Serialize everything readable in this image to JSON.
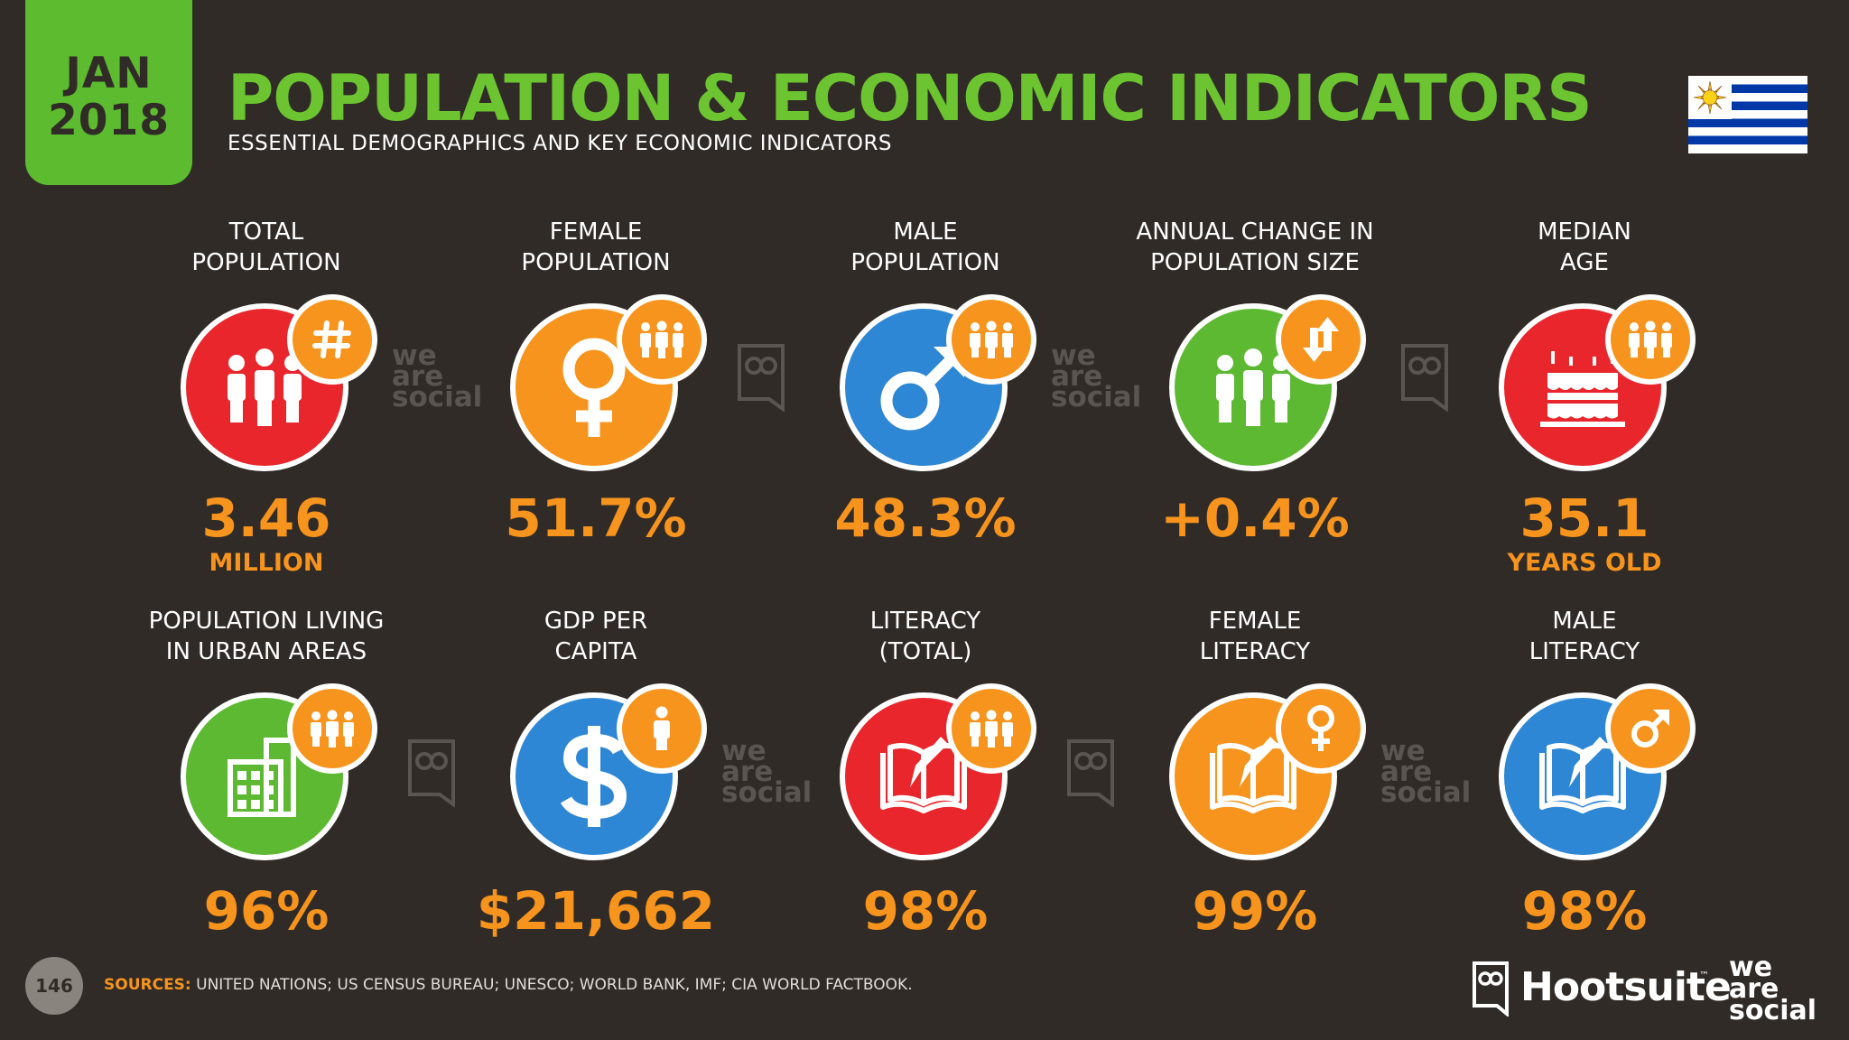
{
  "header": {
    "date_month": "JAN",
    "date_year": "2018",
    "title": "POPULATION & ECONOMIC INDICATORS",
    "subtitle": "ESSENTIAL DEMOGRAPHICS AND KEY ECONOMIC INDICATORS"
  },
  "metrics": [
    {
      "label_line1": "TOTAL",
      "label_line2": "POPULATION",
      "value": "3.46",
      "unit": "MILLION"
    },
    {
      "label_line1": "FEMALE",
      "label_line2": "POPULATION",
      "value": "51.7%",
      "unit": ""
    },
    {
      "label_line1": "MALE",
      "label_line2": "POPULATION",
      "value": "48.3%",
      "unit": ""
    },
    {
      "label_line1": "ANNUAL CHANGE IN",
      "label_line2": "POPULATION SIZE",
      "value": "+0.4%",
      "unit": ""
    },
    {
      "label_line1": "MEDIAN",
      "label_line2": "AGE",
      "value": "35.1",
      "unit": "YEARS OLD"
    },
    {
      "label_line1": "POPULATION LIVING",
      "label_line2": "IN URBAN AREAS",
      "value": "96%",
      "unit": ""
    },
    {
      "label_line1": "GDP PER",
      "label_line2": "CAPITA",
      "value": "$21,662",
      "unit": ""
    },
    {
      "label_line1": "LITERACY",
      "label_line2": "(TOTAL)",
      "value": "98%",
      "unit": ""
    },
    {
      "label_line1": "FEMALE",
      "label_line2": "LITERACY",
      "value": "99%",
      "unit": ""
    },
    {
      "label_line1": "MALE",
      "label_line2": "LITERACY",
      "value": "98%",
      "unit": ""
    }
  ],
  "watermark": {
    "line1": "we",
    "line2": "are",
    "line3": "social"
  },
  "footer": {
    "page_number": "146",
    "sources_label": "SOURCES:",
    "sources_text": "UNITED NATIONS; US CENSUS BUREAU; UNESCO; WORLD BANK, IMF; CIA WORLD FACTBOOK.",
    "brand_hootsuite": "Hootsuite",
    "brand_tm": "™",
    "brand_we": "we",
    "brand_are": "are",
    "brand_social": "social"
  },
  "colors": {
    "background": "#302b27",
    "title_green": "#6cc431",
    "value_orange": "#f7941d",
    "red": "#e8262c",
    "orange": "#f7941d",
    "blue": "#2e87d4",
    "green": "#5cb931"
  },
  "icons": [
    "people-hash-icon",
    "female-symbol-icon",
    "male-symbol-icon",
    "people-arrows-icon",
    "birthday-cake-icon",
    "building-icon",
    "dollar-icon",
    "book-pencil-icon",
    "book-pencil-icon",
    "book-pencil-icon"
  ]
}
